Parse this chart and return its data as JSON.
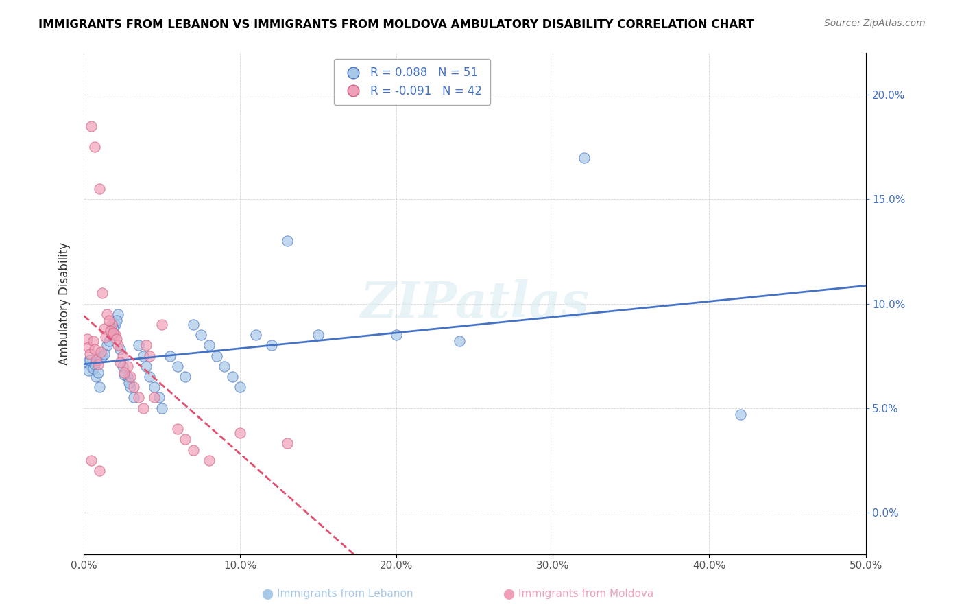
{
  "title": "IMMIGRANTS FROM LEBANON VS IMMIGRANTS FROM MOLDOVA AMBULATORY DISABILITY CORRELATION CHART",
  "source": "Source: ZipAtlas.com",
  "xlabel": "",
  "ylabel": "Ambulatory Disability",
  "xlim": [
    0.0,
    0.5
  ],
  "ylim": [
    -0.02,
    0.22
  ],
  "xticks": [
    0.0,
    0.1,
    0.2,
    0.3,
    0.4,
    0.5
  ],
  "yticks": [
    0.0,
    0.05,
    0.1,
    0.15,
    0.2
  ],
  "xtick_labels": [
    "0.0%",
    "10.0%",
    "20.0%",
    "30.0%",
    "40.0%",
    "50.0%"
  ],
  "ytick_labels": [
    "0.0%",
    "5.0%",
    "10.0%",
    "15.0%",
    "20.0%"
  ],
  "legend1_r": "R = 0.088",
  "legend1_n": "N = 51",
  "legend2_r": "R = -0.091",
  "legend2_n": "N = 42",
  "color_lebanon": "#a8c8e8",
  "color_moldova": "#f0a0b8",
  "line_color_lebanon": "#4472c4",
  "line_color_moldova": "#e05070",
  "watermark": "ZIPatlas",
  "lebanon_points": [
    [
      0.005,
      0.07
    ],
    [
      0.008,
      0.065
    ],
    [
      0.01,
      0.06
    ],
    [
      0.012,
      0.075
    ],
    [
      0.015,
      0.08
    ],
    [
      0.018,
      0.085
    ],
    [
      0.02,
      0.09
    ],
    [
      0.022,
      0.095
    ],
    [
      0.025,
      0.07
    ],
    [
      0.028,
      0.065
    ],
    [
      0.03,
      0.06
    ],
    [
      0.032,
      0.055
    ],
    [
      0.035,
      0.08
    ],
    [
      0.038,
      0.075
    ],
    [
      0.04,
      0.07
    ],
    [
      0.042,
      0.065
    ],
    [
      0.045,
      0.06
    ],
    [
      0.048,
      0.055
    ],
    [
      0.05,
      0.05
    ],
    [
      0.055,
      0.075
    ],
    [
      0.06,
      0.07
    ],
    [
      0.065,
      0.065
    ],
    [
      0.07,
      0.09
    ],
    [
      0.075,
      0.085
    ],
    [
      0.08,
      0.08
    ],
    [
      0.085,
      0.075
    ],
    [
      0.09,
      0.07
    ],
    [
      0.095,
      0.065
    ],
    [
      0.1,
      0.06
    ],
    [
      0.11,
      0.085
    ],
    [
      0.12,
      0.08
    ],
    [
      0.13,
      0.13
    ],
    [
      0.002,
      0.072
    ],
    [
      0.003,
      0.068
    ],
    [
      0.004,
      0.073
    ],
    [
      0.006,
      0.069
    ],
    [
      0.007,
      0.071
    ],
    [
      0.009,
      0.067
    ],
    [
      0.011,
      0.074
    ],
    [
      0.013,
      0.076
    ],
    [
      0.016,
      0.082
    ],
    [
      0.019,
      0.088
    ],
    [
      0.021,
      0.092
    ],
    [
      0.023,
      0.078
    ],
    [
      0.026,
      0.066
    ],
    [
      0.029,
      0.062
    ],
    [
      0.15,
      0.085
    ],
    [
      0.2,
      0.085
    ],
    [
      0.24,
      0.082
    ],
    [
      0.32,
      0.17
    ],
    [
      0.42,
      0.047
    ]
  ],
  "moldova_points": [
    [
      0.005,
      0.185
    ],
    [
      0.007,
      0.175
    ],
    [
      0.01,
      0.155
    ],
    [
      0.012,
      0.105
    ],
    [
      0.015,
      0.095
    ],
    [
      0.018,
      0.09
    ],
    [
      0.02,
      0.085
    ],
    [
      0.022,
      0.08
    ],
    [
      0.025,
      0.075
    ],
    [
      0.028,
      0.07
    ],
    [
      0.03,
      0.065
    ],
    [
      0.032,
      0.06
    ],
    [
      0.035,
      0.055
    ],
    [
      0.038,
      0.05
    ],
    [
      0.04,
      0.08
    ],
    [
      0.042,
      0.075
    ],
    [
      0.002,
      0.083
    ],
    [
      0.003,
      0.079
    ],
    [
      0.004,
      0.076
    ],
    [
      0.006,
      0.082
    ],
    [
      0.007,
      0.078
    ],
    [
      0.008,
      0.073
    ],
    [
      0.009,
      0.071
    ],
    [
      0.011,
      0.077
    ],
    [
      0.013,
      0.088
    ],
    [
      0.014,
      0.084
    ],
    [
      0.016,
      0.092
    ],
    [
      0.017,
      0.087
    ],
    [
      0.019,
      0.086
    ],
    [
      0.021,
      0.083
    ],
    [
      0.023,
      0.072
    ],
    [
      0.026,
      0.067
    ],
    [
      0.045,
      0.055
    ],
    [
      0.05,
      0.09
    ],
    [
      0.06,
      0.04
    ],
    [
      0.065,
      0.035
    ],
    [
      0.07,
      0.03
    ],
    [
      0.08,
      0.025
    ],
    [
      0.1,
      0.038
    ],
    [
      0.13,
      0.033
    ],
    [
      0.005,
      0.025
    ],
    [
      0.01,
      0.02
    ]
  ]
}
